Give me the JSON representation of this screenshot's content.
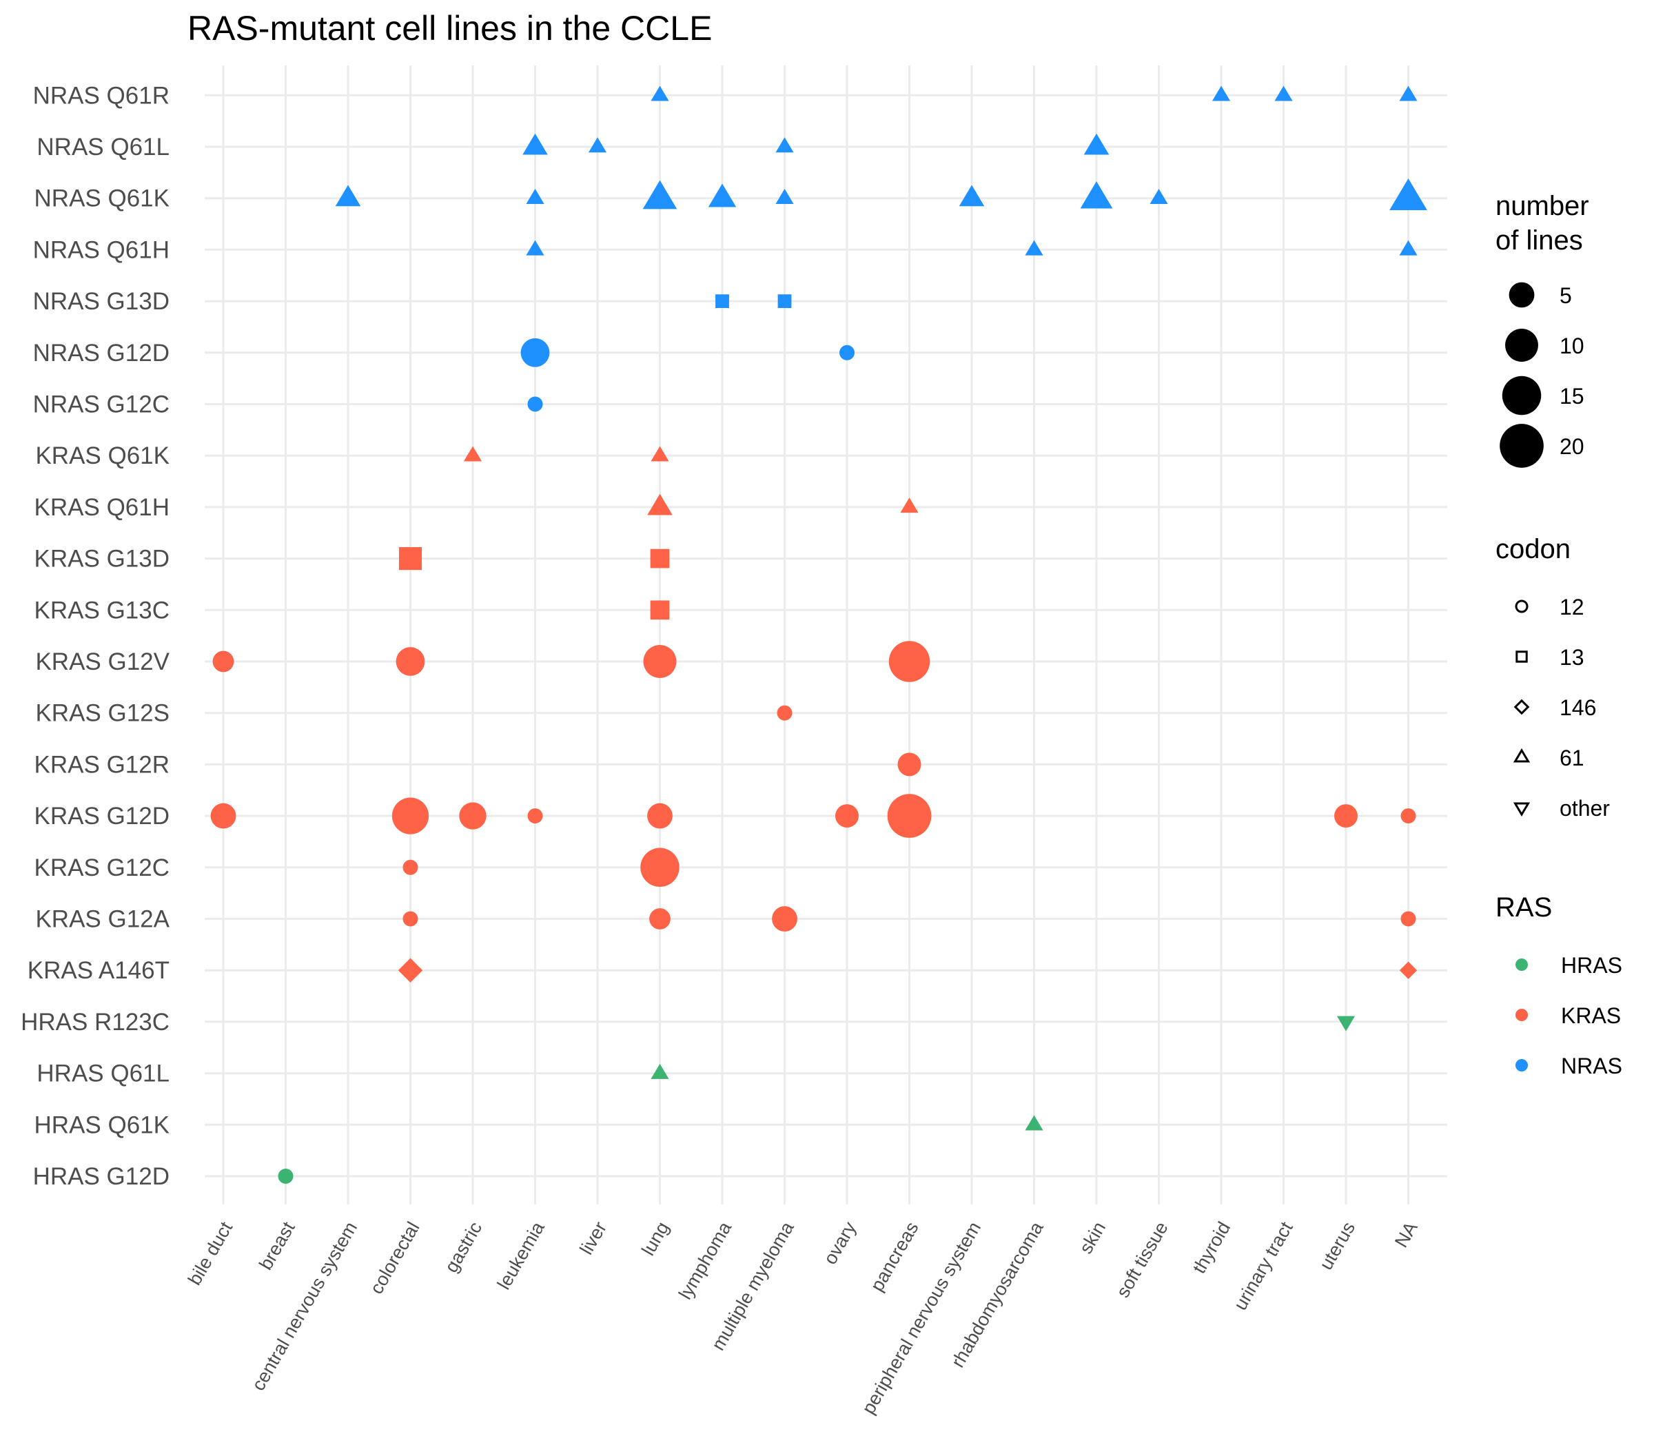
{
  "chart_data": {
    "type": "scatter",
    "title": "RAS-mutant cell lines in the CCLE",
    "xlabel": "",
    "ylabel": "",
    "x_categories": [
      "bile duct",
      "breast",
      "central nervous system",
      "colorectal",
      "gastric",
      "leukemia",
      "liver",
      "lung",
      "lymphoma",
      "multiple myeloma",
      "ovary",
      "pancreas",
      "peripheral nervous system",
      "rhabdomyosarcoma",
      "skin",
      "soft tissue",
      "thyroid",
      "urinary tract",
      "uterus",
      "NA"
    ],
    "y_categories": [
      "HRAS G12D",
      "HRAS Q61K",
      "HRAS Q61L",
      "HRAS R123C",
      "KRAS A146T",
      "KRAS G12A",
      "KRAS G12C",
      "KRAS G12D",
      "KRAS G12R",
      "KRAS G12S",
      "KRAS G12V",
      "KRAS G13C",
      "KRAS G13D",
      "KRAS Q61H",
      "KRAS Q61K",
      "NRAS G12C",
      "NRAS G12D",
      "NRAS G13D",
      "NRAS Q61H",
      "NRAS Q61K",
      "NRAS Q61L",
      "NRAS Q61R"
    ],
    "legend": {
      "size": {
        "title_lines": [
          "number",
          "of lines"
        ],
        "values": [
          5,
          10,
          15,
          20
        ],
        "labels": [
          "5",
          "10",
          "15",
          "20"
        ]
      },
      "codon": {
        "title": "codon",
        "labels": [
          "12",
          "13",
          "146",
          "61",
          "other"
        ],
        "shapes": [
          "circle",
          "square",
          "diamond",
          "triangle-up",
          "triangle-down"
        ]
      },
      "ras": {
        "title": "RAS",
        "labels": [
          "HRAS",
          "KRAS",
          "NRAS"
        ],
        "colors": [
          "#3cb371",
          "#ff6347",
          "#1e90ff"
        ]
      }
    },
    "points": [
      {
        "x": "lung",
        "y": "NRAS Q61R",
        "count": 1,
        "codon": "61",
        "ras": "NRAS"
      },
      {
        "x": "thyroid",
        "y": "NRAS Q61R",
        "count": 1,
        "codon": "61",
        "ras": "NRAS"
      },
      {
        "x": "urinary tract",
        "y": "NRAS Q61R",
        "count": 1,
        "codon": "61",
        "ras": "NRAS"
      },
      {
        "x": "NA",
        "y": "NRAS Q61R",
        "count": 1,
        "codon": "61",
        "ras": "NRAS"
      },
      {
        "x": "leukemia",
        "y": "NRAS Q61L",
        "count": 3,
        "codon": "61",
        "ras": "NRAS"
      },
      {
        "x": "liver",
        "y": "NRAS Q61L",
        "count": 1,
        "codon": "61",
        "ras": "NRAS"
      },
      {
        "x": "multiple myeloma",
        "y": "NRAS Q61L",
        "count": 1,
        "codon": "61",
        "ras": "NRAS"
      },
      {
        "x": "skin",
        "y": "NRAS Q61L",
        "count": 3,
        "codon": "61",
        "ras": "NRAS"
      },
      {
        "x": "central nervous system",
        "y": "NRAS Q61K",
        "count": 3,
        "codon": "61",
        "ras": "NRAS"
      },
      {
        "x": "leukemia",
        "y": "NRAS Q61K",
        "count": 1,
        "codon": "61",
        "ras": "NRAS"
      },
      {
        "x": "lung",
        "y": "NRAS Q61K",
        "count": 7,
        "codon": "61",
        "ras": "NRAS"
      },
      {
        "x": "lymphoma",
        "y": "NRAS Q61K",
        "count": 4,
        "codon": "61",
        "ras": "NRAS"
      },
      {
        "x": "multiple myeloma",
        "y": "NRAS Q61K",
        "count": 1,
        "codon": "61",
        "ras": "NRAS"
      },
      {
        "x": "peripheral nervous system",
        "y": "NRAS Q61K",
        "count": 3,
        "codon": "61",
        "ras": "NRAS"
      },
      {
        "x": "skin",
        "y": "NRAS Q61K",
        "count": 6,
        "codon": "61",
        "ras": "NRAS"
      },
      {
        "x": "soft tissue",
        "y": "NRAS Q61K",
        "count": 1,
        "codon": "61",
        "ras": "NRAS"
      },
      {
        "x": "NA",
        "y": "NRAS Q61K",
        "count": 9,
        "codon": "61",
        "ras": "NRAS"
      },
      {
        "x": "leukemia",
        "y": "NRAS Q61H",
        "count": 1,
        "codon": "61",
        "ras": "NRAS"
      },
      {
        "x": "rhabdomyosarcoma",
        "y": "NRAS Q61H",
        "count": 1,
        "codon": "61",
        "ras": "NRAS"
      },
      {
        "x": "NA",
        "y": "NRAS Q61H",
        "count": 1,
        "codon": "61",
        "ras": "NRAS"
      },
      {
        "x": "lymphoma",
        "y": "NRAS G13D",
        "count": 1,
        "codon": "13",
        "ras": "NRAS"
      },
      {
        "x": "multiple myeloma",
        "y": "NRAS G13D",
        "count": 1,
        "codon": "13",
        "ras": "NRAS"
      },
      {
        "x": "leukemia",
        "y": "NRAS G12D",
        "count": 7,
        "codon": "12",
        "ras": "NRAS"
      },
      {
        "x": "ovary",
        "y": "NRAS G12D",
        "count": 1,
        "codon": "12",
        "ras": "NRAS"
      },
      {
        "x": "leukemia",
        "y": "NRAS G12C",
        "count": 1,
        "codon": "12",
        "ras": "NRAS"
      },
      {
        "x": "gastric",
        "y": "KRAS Q61K",
        "count": 1,
        "codon": "61",
        "ras": "KRAS"
      },
      {
        "x": "lung",
        "y": "KRAS Q61K",
        "count": 1,
        "codon": "61",
        "ras": "KRAS"
      },
      {
        "x": "lung",
        "y": "KRAS Q61H",
        "count": 3,
        "codon": "61",
        "ras": "KRAS"
      },
      {
        "x": "pancreas",
        "y": "KRAS Q61H",
        "count": 1,
        "codon": "61",
        "ras": "KRAS"
      },
      {
        "x": "colorectal",
        "y": "KRAS G13D",
        "count": 5,
        "codon": "13",
        "ras": "KRAS"
      },
      {
        "x": "lung",
        "y": "KRAS G13D",
        "count": 3,
        "codon": "13",
        "ras": "KRAS"
      },
      {
        "x": "lung",
        "y": "KRAS G13C",
        "count": 3,
        "codon": "13",
        "ras": "KRAS"
      },
      {
        "x": "bile duct",
        "y": "KRAS G12V",
        "count": 3,
        "codon": "12",
        "ras": "KRAS"
      },
      {
        "x": "colorectal",
        "y": "KRAS G12V",
        "count": 7,
        "codon": "12",
        "ras": "KRAS"
      },
      {
        "x": "lung",
        "y": "KRAS G12V",
        "count": 10,
        "codon": "12",
        "ras": "KRAS"
      },
      {
        "x": "pancreas",
        "y": "KRAS G12V",
        "count": 17,
        "codon": "12",
        "ras": "KRAS"
      },
      {
        "x": "multiple myeloma",
        "y": "KRAS G12S",
        "count": 1,
        "codon": "12",
        "ras": "KRAS"
      },
      {
        "x": "pancreas",
        "y": "KRAS G12R",
        "count": 4,
        "codon": "12",
        "ras": "KRAS"
      },
      {
        "x": "bile duct",
        "y": "KRAS G12D",
        "count": 5,
        "codon": "12",
        "ras": "KRAS"
      },
      {
        "x": "colorectal",
        "y": "KRAS G12D",
        "count": 13,
        "codon": "12",
        "ras": "KRAS"
      },
      {
        "x": "gastric",
        "y": "KRAS G12D",
        "count": 6,
        "codon": "12",
        "ras": "KRAS"
      },
      {
        "x": "leukemia",
        "y": "KRAS G12D",
        "count": 1,
        "codon": "12",
        "ras": "KRAS"
      },
      {
        "x": "lung",
        "y": "KRAS G12D",
        "count": 5,
        "codon": "12",
        "ras": "KRAS"
      },
      {
        "x": "ovary",
        "y": "KRAS G12D",
        "count": 4,
        "codon": "12",
        "ras": "KRAS"
      },
      {
        "x": "pancreas",
        "y": "KRAS G12D",
        "count": 20,
        "codon": "12",
        "ras": "KRAS"
      },
      {
        "x": "uterus",
        "y": "KRAS G12D",
        "count": 4,
        "codon": "12",
        "ras": "KRAS"
      },
      {
        "x": "NA",
        "y": "KRAS G12D",
        "count": 1,
        "codon": "12",
        "ras": "KRAS"
      },
      {
        "x": "colorectal",
        "y": "KRAS G12C",
        "count": 1,
        "codon": "12",
        "ras": "KRAS"
      },
      {
        "x": "lung",
        "y": "KRAS G12C",
        "count": 15,
        "codon": "12",
        "ras": "KRAS"
      },
      {
        "x": "colorectal",
        "y": "KRAS G12A",
        "count": 1,
        "codon": "12",
        "ras": "KRAS"
      },
      {
        "x": "lung",
        "y": "KRAS G12A",
        "count": 3,
        "codon": "12",
        "ras": "KRAS"
      },
      {
        "x": "multiple myeloma",
        "y": "KRAS G12A",
        "count": 5,
        "codon": "12",
        "ras": "KRAS"
      },
      {
        "x": "NA",
        "y": "KRAS G12A",
        "count": 1,
        "codon": "12",
        "ras": "KRAS"
      },
      {
        "x": "colorectal",
        "y": "KRAS A146T",
        "count": 3,
        "codon": "146",
        "ras": "KRAS"
      },
      {
        "x": "NA",
        "y": "KRAS A146T",
        "count": 1,
        "codon": "146",
        "ras": "KRAS"
      },
      {
        "x": "uterus",
        "y": "HRAS R123C",
        "count": 1,
        "codon": "other",
        "ras": "HRAS"
      },
      {
        "x": "lung",
        "y": "HRAS Q61L",
        "count": 1,
        "codon": "61",
        "ras": "HRAS"
      },
      {
        "x": "rhabdomyosarcoma",
        "y": "HRAS Q61K",
        "count": 1,
        "codon": "61",
        "ras": "HRAS"
      },
      {
        "x": "breast",
        "y": "HRAS G12D",
        "count": 1,
        "codon": "12",
        "ras": "HRAS"
      }
    ]
  }
}
